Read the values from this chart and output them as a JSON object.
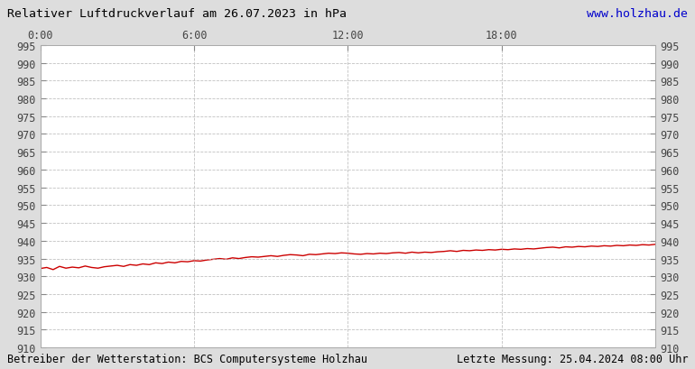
{
  "title": "Relativer Luftdruckverlauf am 26.07.2023 in hPa",
  "url_text": "www.holzhau.de",
  "footer_left": "Betreiber der Wetterstation: BCS Computersysteme Holzhau",
  "footer_right": "Letzte Messung: 25.04.2024 08:00 Uhr",
  "x_ticks": [
    0,
    6,
    12,
    18
  ],
  "x_tick_labels": [
    "0:00",
    "6:00",
    "12:00",
    "18:00"
  ],
  "ylim": [
    910,
    995
  ],
  "xlim": [
    0,
    24
  ],
  "y_step": 5,
  "line_color": "#cc0000",
  "grid_color": "#bbbbbb",
  "bg_color": "#dddddd",
  "plot_bg_color": "#ffffff",
  "title_color": "#000000",
  "url_color": "#0000cc",
  "footer_color": "#000000",
  "pressure_points": [
    0.0,
    932.2,
    0.25,
    932.5,
    0.5,
    931.9,
    0.75,
    932.8,
    1.0,
    932.3,
    1.25,
    932.6,
    1.5,
    932.4,
    1.75,
    932.9,
    2.0,
    932.5,
    2.25,
    932.3,
    2.5,
    932.7,
    2.75,
    932.9,
    3.0,
    933.1,
    3.25,
    932.8,
    3.5,
    933.3,
    3.75,
    933.1,
    4.0,
    933.5,
    4.25,
    933.3,
    4.5,
    933.8,
    4.75,
    933.6,
    5.0,
    934.0,
    5.25,
    933.8,
    5.5,
    934.2,
    5.75,
    934.1,
    6.0,
    934.4,
    6.25,
    934.3,
    6.5,
    934.6,
    6.75,
    934.8,
    7.0,
    935.0,
    7.25,
    934.8,
    7.5,
    935.2,
    7.75,
    935.0,
    8.0,
    935.3,
    8.25,
    935.5,
    8.5,
    935.4,
    8.75,
    935.6,
    9.0,
    935.8,
    9.25,
    935.6,
    9.5,
    935.9,
    9.75,
    936.1,
    10.0,
    936.0,
    10.25,
    935.8,
    10.5,
    936.2,
    10.75,
    936.1,
    11.0,
    936.3,
    11.25,
    936.5,
    11.5,
    936.4,
    11.75,
    936.6,
    12.0,
    936.5,
    12.25,
    936.3,
    12.5,
    936.2,
    12.75,
    936.4,
    13.0,
    936.3,
    13.25,
    936.5,
    13.5,
    936.4,
    13.75,
    936.6,
    14.0,
    936.7,
    14.25,
    936.5,
    14.5,
    936.8,
    14.75,
    936.6,
    15.0,
    936.8,
    15.25,
    936.7,
    15.5,
    936.9,
    15.75,
    937.0,
    16.0,
    937.2,
    16.25,
    937.0,
    16.5,
    937.3,
    16.75,
    937.2,
    17.0,
    937.4,
    17.25,
    937.3,
    17.5,
    937.5,
    17.75,
    937.4,
    18.0,
    937.6,
    18.25,
    937.5,
    18.5,
    937.7,
    18.75,
    937.6,
    19.0,
    937.8,
    19.25,
    937.7,
    19.5,
    937.9,
    19.75,
    938.1,
    20.0,
    938.2,
    20.25,
    938.0,
    20.5,
    938.3,
    20.75,
    938.2,
    21.0,
    938.4,
    21.25,
    938.3,
    21.5,
    938.5,
    21.75,
    938.4,
    22.0,
    938.6,
    22.25,
    938.5,
    22.5,
    938.7,
    22.75,
    938.6,
    23.0,
    938.8,
    23.25,
    938.7,
    23.5,
    938.9,
    23.75,
    938.8,
    24.0,
    939.0
  ]
}
